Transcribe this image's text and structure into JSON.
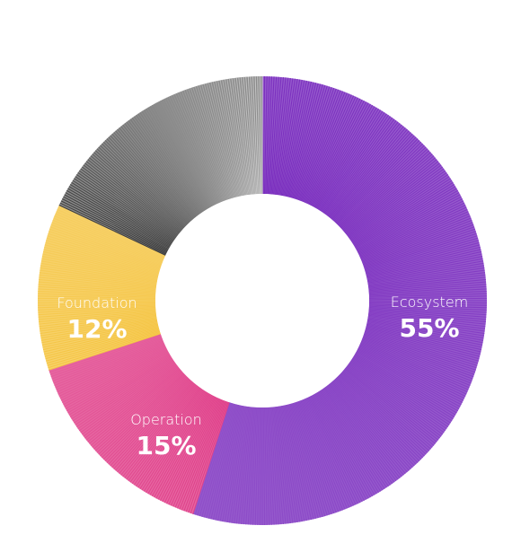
{
  "chart_data": {
    "type": "pie",
    "style": "donut",
    "slices": [
      {
        "name": "Ecosystem",
        "value": 55,
        "label": "55%",
        "color": "#7b2fbf"
      },
      {
        "name": "Operation",
        "value": 15,
        "label": "15%",
        "color": "#e0408a"
      },
      {
        "name": "Foundation",
        "value": 12,
        "label": "12%",
        "color": "#f5c544"
      },
      {
        "name": "",
        "value": 18,
        "label": "",
        "color": "#6e6e6e"
      }
    ]
  }
}
